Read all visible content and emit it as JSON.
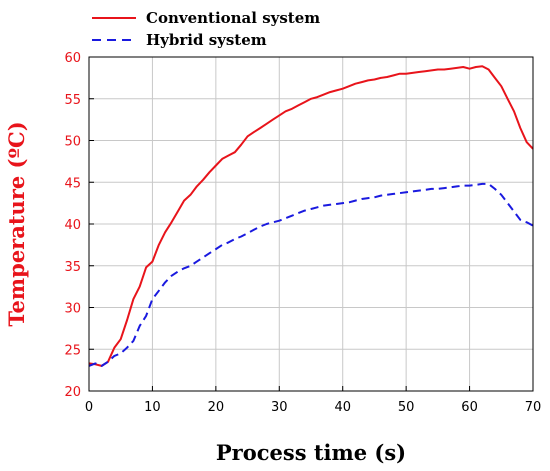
{
  "chart_data": {
    "type": "line",
    "title": "",
    "xlabel": "Process time (s)",
    "ylabel": "Temperature (ºC)",
    "xlim": [
      0,
      70
    ],
    "ylim": [
      20,
      60
    ],
    "xticks": [
      0,
      10,
      20,
      30,
      40,
      50,
      60,
      70
    ],
    "yticks": [
      20,
      25,
      30,
      35,
      40,
      45,
      50,
      55,
      60
    ],
    "grid": true,
    "legend_position": "top-left, above plot",
    "series": [
      {
        "name": "Conventional system",
        "color": "#e8141b",
        "style": "solid",
        "x": [
          0,
          1,
          2,
          3,
          4,
          5,
          6,
          7,
          8,
          9,
          10,
          11,
          12,
          13,
          14,
          15,
          16,
          17,
          18,
          19,
          20,
          21,
          22,
          23,
          24,
          25,
          26,
          27,
          28,
          29,
          30,
          31,
          32,
          33,
          34,
          35,
          36,
          37,
          38,
          39,
          40,
          41,
          42,
          43,
          44,
          45,
          46,
          47,
          48,
          49,
          50,
          51,
          52,
          53,
          54,
          55,
          56,
          57,
          58,
          59,
          60,
          61,
          62,
          63,
          64,
          65,
          66,
          67,
          68,
          69,
          70
        ],
        "y": [
          23.3,
          23.2,
          23.0,
          23.5,
          25.2,
          26.2,
          28.5,
          31.0,
          32.5,
          34.8,
          35.5,
          37.5,
          39.0,
          40.2,
          41.5,
          42.8,
          43.5,
          44.5,
          45.3,
          46.2,
          47.0,
          47.8,
          48.2,
          48.6,
          49.5,
          50.5,
          51.0,
          51.5,
          52.0,
          52.5,
          53.0,
          53.5,
          53.8,
          54.2,
          54.6,
          55.0,
          55.2,
          55.5,
          55.8,
          56.0,
          56.2,
          56.5,
          56.8,
          57.0,
          57.2,
          57.3,
          57.5,
          57.6,
          57.8,
          58.0,
          58.0,
          58.1,
          58.2,
          58.3,
          58.4,
          58.5,
          58.5,
          58.6,
          58.7,
          58.8,
          58.6,
          58.8,
          58.9,
          58.5,
          57.5,
          56.5,
          55.0,
          53.5,
          51.5,
          49.8,
          49.0
        ]
      },
      {
        "name": "Hybrid system",
        "color": "#1a1adf",
        "style": "dashed",
        "x": [
          0,
          1,
          2,
          3,
          4,
          5,
          6,
          7,
          8,
          9,
          10,
          11,
          12,
          13,
          14,
          15,
          16,
          17,
          18,
          19,
          20,
          21,
          22,
          23,
          24,
          25,
          26,
          27,
          28,
          29,
          30,
          31,
          32,
          33,
          34,
          35,
          36,
          37,
          38,
          39,
          40,
          41,
          42,
          43,
          44,
          45,
          46,
          47,
          48,
          49,
          50,
          51,
          52,
          53,
          54,
          55,
          56,
          57,
          58,
          59,
          60,
          61,
          62,
          63,
          64,
          65,
          66,
          67,
          68,
          69,
          70
        ],
        "y": [
          23.0,
          23.3,
          23.0,
          23.5,
          24.2,
          24.5,
          25.2,
          26.0,
          27.8,
          29.0,
          31.0,
          32.0,
          33.0,
          33.8,
          34.3,
          34.7,
          35.0,
          35.5,
          36.0,
          36.5,
          37.0,
          37.5,
          37.8,
          38.2,
          38.5,
          38.9,
          39.3,
          39.7,
          40.0,
          40.2,
          40.4,
          40.7,
          41.0,
          41.3,
          41.6,
          41.8,
          42.0,
          42.2,
          42.3,
          42.4,
          42.5,
          42.6,
          42.8,
          43.0,
          43.1,
          43.2,
          43.4,
          43.5,
          43.6,
          43.7,
          43.8,
          43.9,
          44.0,
          44.1,
          44.2,
          44.2,
          44.3,
          44.4,
          44.5,
          44.6,
          44.6,
          44.7,
          44.8,
          44.8,
          44.2,
          43.5,
          42.5,
          41.5,
          40.5,
          40.2,
          39.8
        ]
      }
    ]
  }
}
